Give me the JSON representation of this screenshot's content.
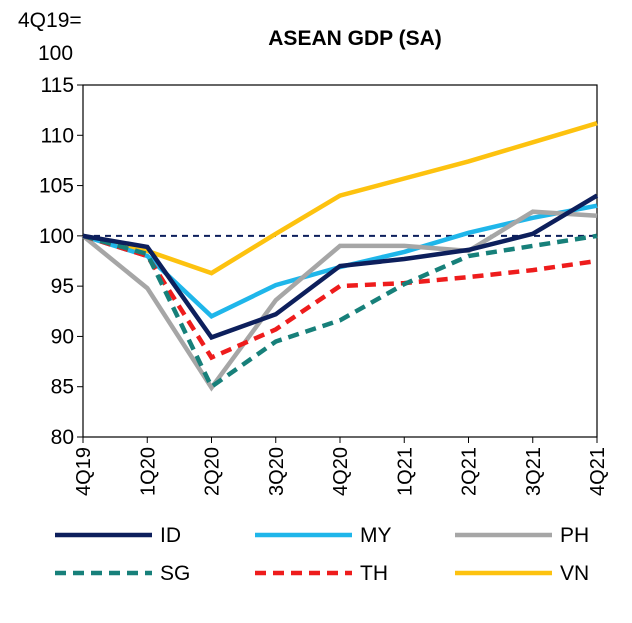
{
  "chart_data": {
    "type": "line",
    "title": "ASEAN GDP (SA)",
    "index_note_line1": "4Q19=",
    "index_note_line2": "100",
    "categories": [
      "4Q19",
      "1Q20",
      "2Q20",
      "3Q20",
      "4Q20",
      "1Q21",
      "2Q21",
      "3Q21",
      "4Q21"
    ],
    "ylim": [
      80,
      115
    ],
    "yticks": [
      80,
      85,
      90,
      95,
      100,
      105,
      110,
      115
    ],
    "reference_line": 100,
    "legend_position": "bottom",
    "series": [
      {
        "name": "ID",
        "color": "#0d1f5c",
        "dashed": false,
        "values": [
          100,
          98.9,
          89.9,
          92.2,
          97.0,
          97.7,
          98.6,
          100.2,
          104.0
        ]
      },
      {
        "name": "MY",
        "color": "#1fb6ea",
        "dashed": false,
        "values": [
          100,
          98.0,
          92.0,
          95.1,
          96.9,
          98.4,
          100.3,
          101.8,
          103.0
        ]
      },
      {
        "name": "PH",
        "color": "#a6a6a6",
        "dashed": false,
        "values": [
          100,
          94.8,
          84.9,
          93.6,
          99.0,
          99.0,
          98.5,
          102.4,
          102.0
        ]
      },
      {
        "name": "SG",
        "color": "#17807a",
        "dashed": true,
        "values": [
          100,
          98.2,
          85.0,
          89.5,
          91.6,
          95.2,
          98.0,
          99.0,
          100.0
        ]
      },
      {
        "name": "TH",
        "color": "#ee1c1c",
        "dashed": true,
        "values": [
          100,
          98.0,
          87.9,
          90.7,
          95.0,
          95.3,
          95.9,
          96.6,
          97.5
        ]
      },
      {
        "name": "VN",
        "color": "#fdc20f",
        "dashed": false,
        "values": [
          100,
          98.5,
          96.3,
          100.2,
          104.0,
          105.7,
          107.4,
          109.3,
          111.2
        ]
      }
    ]
  }
}
